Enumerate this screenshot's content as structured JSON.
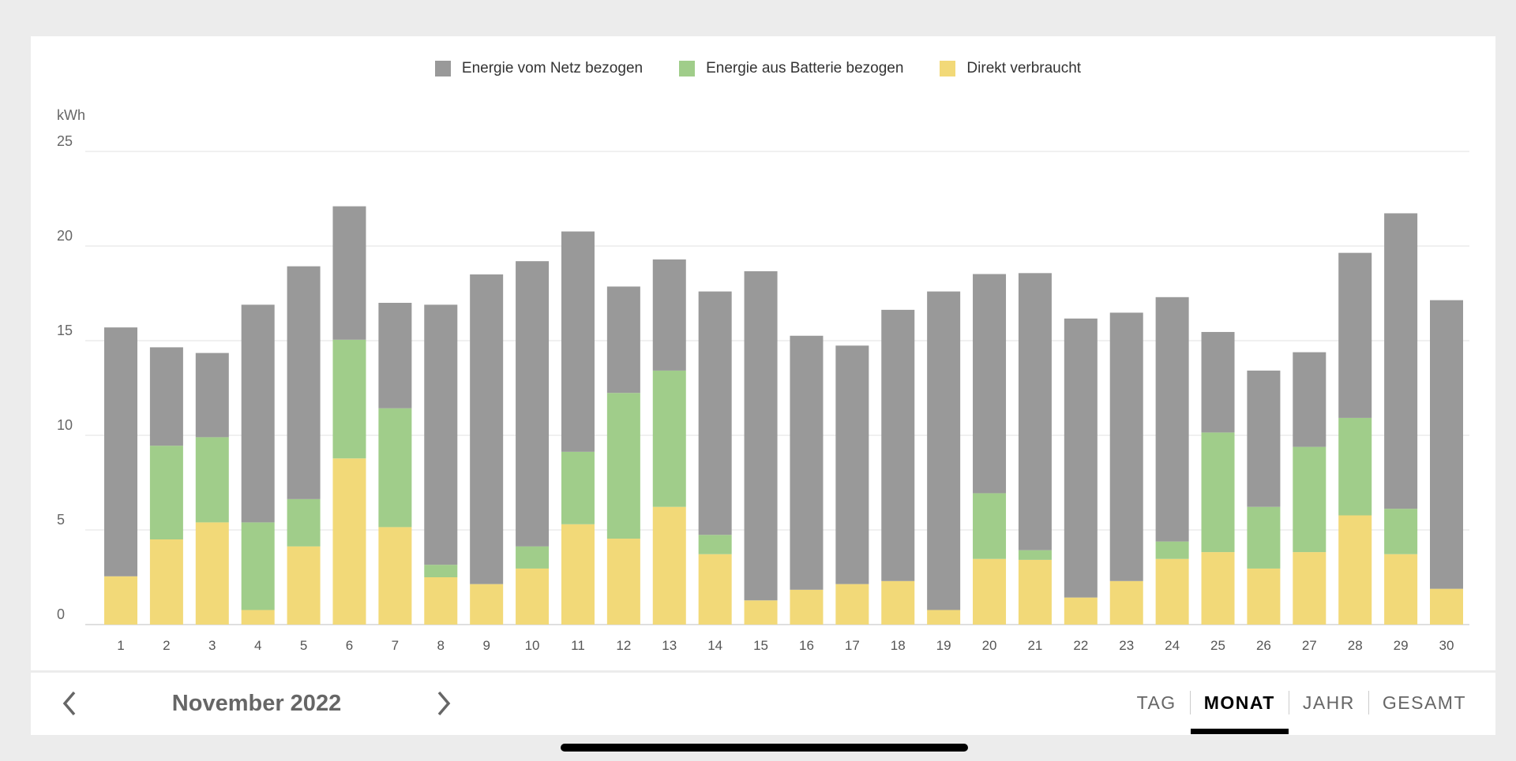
{
  "chart_data": {
    "type": "bar",
    "stacked": true,
    "ylabel": "kWh",
    "xlabel": "",
    "ylim": [
      0,
      25
    ],
    "yticks": [
      0,
      5,
      10,
      15,
      20,
      25
    ],
    "grid": true,
    "legend_position": "top-center",
    "categories": [
      "1",
      "2",
      "3",
      "4",
      "5",
      "6",
      "7",
      "8",
      "9",
      "10",
      "11",
      "12",
      "13",
      "14",
      "15",
      "16",
      "17",
      "18",
      "19",
      "20",
      "21",
      "22",
      "23",
      "24",
      "25",
      "26",
      "27",
      "28",
      "29",
      "30"
    ],
    "series": [
      {
        "name": "Direkt verbraucht",
        "color": "#f2d978",
        "values": [
          2.55,
          4.5,
          5.4,
          0.77,
          4.13,
          8.78,
          5.15,
          2.5,
          2.14,
          2.96,
          5.3,
          4.54,
          6.22,
          3.72,
          1.28,
          1.84,
          2.14,
          2.3,
          0.77,
          3.47,
          3.42,
          1.43,
          2.3,
          3.47,
          3.83,
          2.96,
          3.83,
          5.77,
          3.72,
          1.89
        ]
      },
      {
        "name": "Energie aus Batterie bezogen",
        "color": "#a0cd8a",
        "values": [
          0,
          4.95,
          4.5,
          4.63,
          2.5,
          6.27,
          6.28,
          0.66,
          0,
          1.17,
          3.83,
          7.7,
          7.2,
          1.02,
          0,
          0,
          0,
          0,
          0,
          3.47,
          0.51,
          0,
          0,
          0.92,
          6.32,
          3.26,
          5.56,
          5.15,
          2.4,
          0
        ]
      },
      {
        "name": "Energie vom Netz bezogen",
        "color": "#999999",
        "values": [
          13.15,
          5.2,
          4.45,
          11.5,
          12.3,
          7.05,
          5.57,
          13.74,
          16.36,
          15.07,
          11.64,
          5.62,
          5.87,
          12.86,
          17.39,
          13.42,
          12.6,
          14.33,
          16.83,
          11.58,
          14.64,
          14.74,
          14.18,
          12.91,
          5.31,
          7.2,
          5.0,
          8.72,
          15.61,
          15.25
        ]
      }
    ],
    "legend_order": [
      "Energie vom Netz bezogen",
      "Energie aus Batterie bezogen",
      "Direkt verbraucht"
    ]
  },
  "footer": {
    "period": "November 2022",
    "tabs": [
      "TAG",
      "MONAT",
      "JAHR",
      "GESAMT"
    ],
    "active_tab": "MONAT"
  }
}
